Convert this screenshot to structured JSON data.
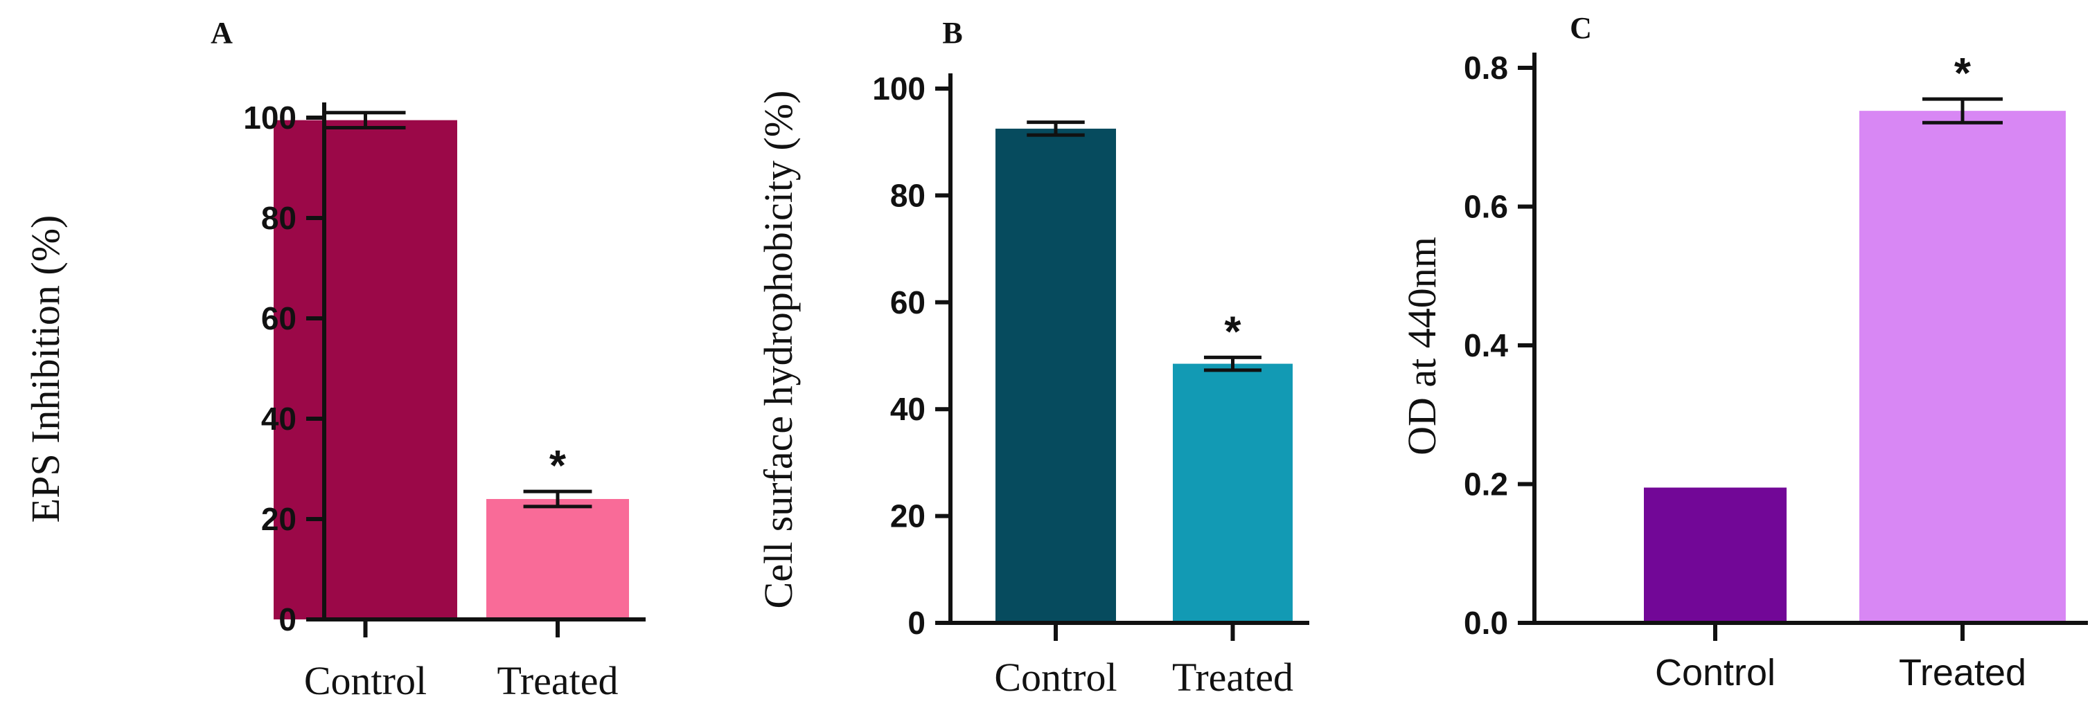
{
  "chart_data": [
    {
      "type": "bar",
      "panel": "A",
      "ylabel": "EPS Inhibition (%)",
      "categories": [
        "Control",
        "Treated"
      ],
      "values": [
        99.5,
        24.0
      ],
      "errors": [
        1.5,
        1.5
      ],
      "significance": [
        "",
        "*"
      ],
      "colors": [
        "#9b0848",
        "#f96b98"
      ],
      "ylim": [
        0,
        100
      ],
      "yticks": [
        0,
        20,
        40,
        60,
        80,
        100
      ],
      "ytick_labels": [
        "0",
        "20",
        "40",
        "60",
        "80",
        "100"
      ]
    },
    {
      "type": "bar",
      "panel": "B",
      "ylabel": "Cell surface hydrophobicity (%)",
      "categories": [
        "Control",
        "Treated"
      ],
      "values": [
        92.5,
        48.5
      ],
      "errors": [
        1.2,
        1.2
      ],
      "significance": [
        "",
        "*"
      ],
      "colors": [
        "#064b5e",
        "#129ab4"
      ],
      "ylim": [
        0,
        100
      ],
      "yticks": [
        0,
        20,
        40,
        60,
        80,
        100
      ],
      "ytick_labels": [
        "0",
        "20",
        "40",
        "60",
        "80",
        "100"
      ]
    },
    {
      "type": "bar",
      "panel": "C",
      "ylabel": "OD at 440nm",
      "categories": [
        "Control",
        "Treated"
      ],
      "values": [
        0.195,
        0.738
      ],
      "errors": [
        0.0,
        0.017
      ],
      "significance": [
        "",
        "*"
      ],
      "colors": [
        "#720797",
        "#d887f4"
      ],
      "ylim": [
        0,
        0.8
      ],
      "yticks": [
        0,
        0.2,
        0.4,
        0.6,
        0.8
      ],
      "ytick_labels": [
        "0.0",
        "0.2",
        "0.4",
        "0.6",
        "0.8"
      ]
    }
  ]
}
